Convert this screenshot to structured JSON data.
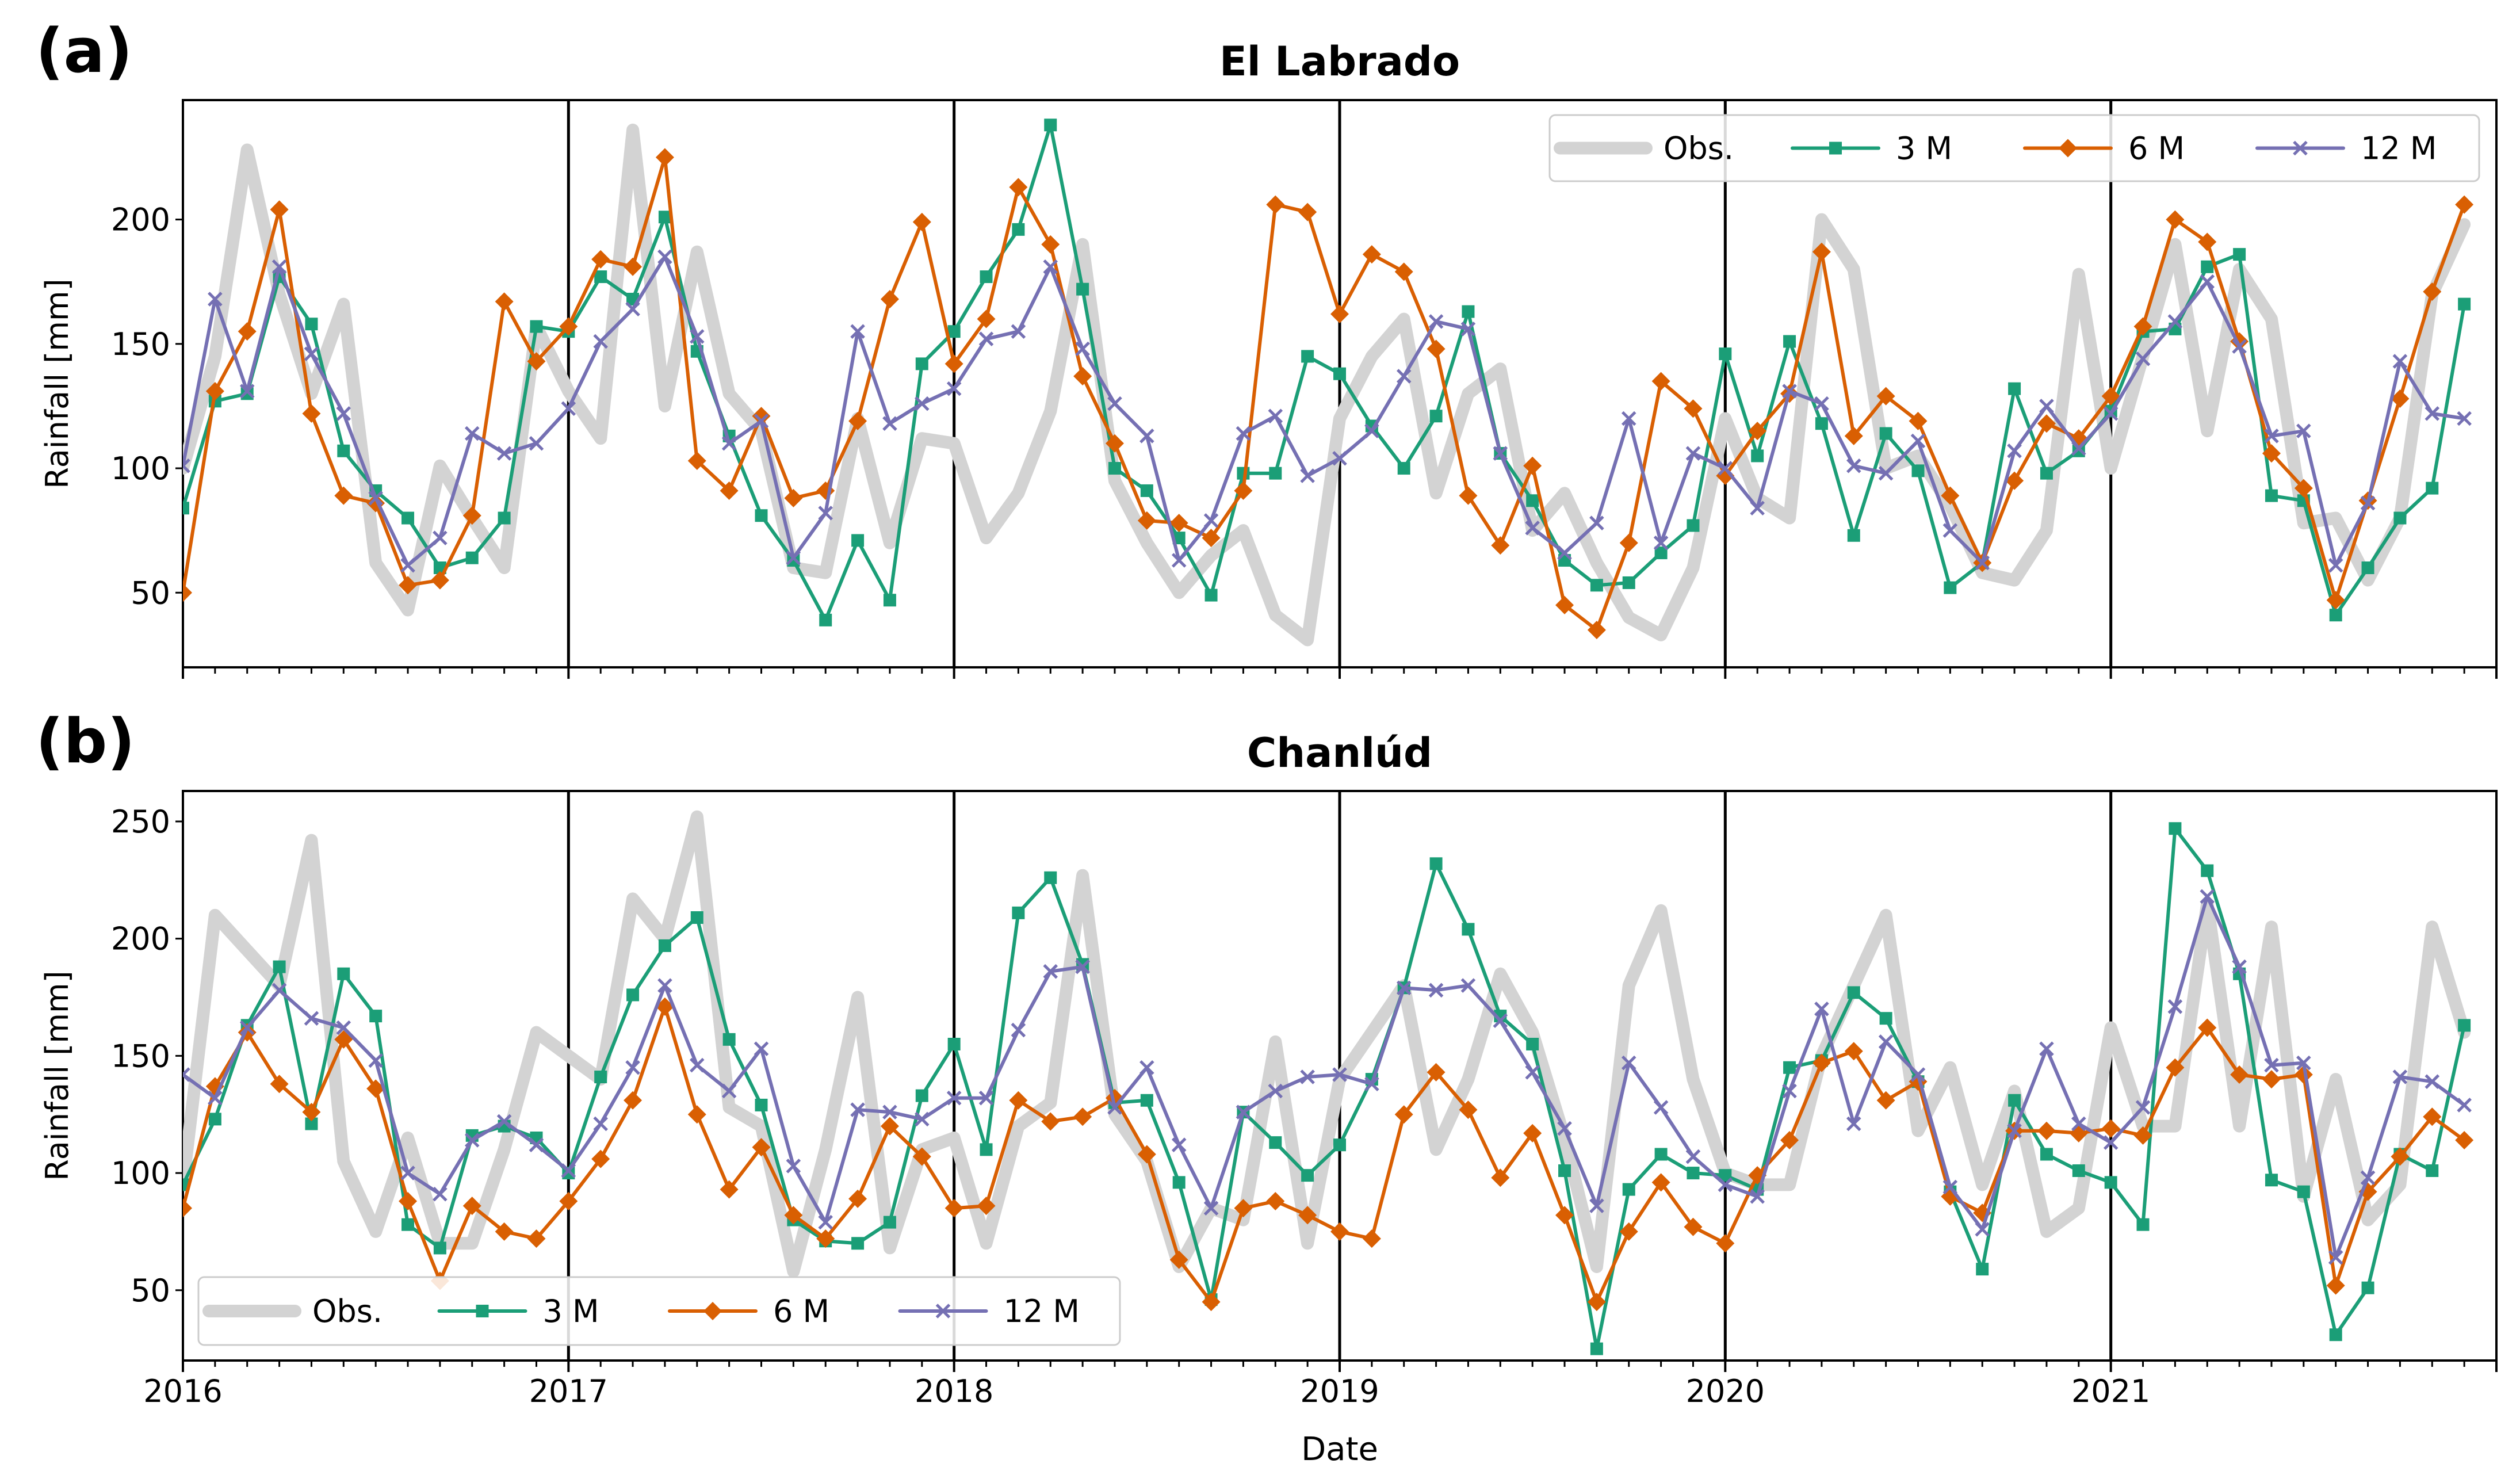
{
  "figure": {
    "xlabel": "Date",
    "ylabel": "Rainfall [mm]"
  },
  "chart_data": [
    {
      "type": "line",
      "panel_label": "(a)",
      "title": "El Labrado",
      "xlabel": "",
      "ylabel": "Rainfall [mm]",
      "x_start_year": 2016,
      "x_end_year": 2022,
      "x_ticks": [
        "2016",
        "2017",
        "2018",
        "2019",
        "2020",
        "2021"
      ],
      "year_lines": [
        2017,
        2018,
        2019,
        2020,
        2021
      ],
      "ylim": [
        20,
        248
      ],
      "yticks": [
        50,
        100,
        150,
        200
      ],
      "legend_position": "top-right",
      "series": [
        {
          "name": "Obs.",
          "color": "#d3d3d3",
          "marker": "circle",
          "values": [
            100,
            145,
            228,
            170,
            130,
            166,
            62,
            43,
            101,
            80,
            60,
            157,
            131,
            112,
            236,
            125,
            187,
            130,
            115,
            60,
            58,
            120,
            70,
            112,
            110,
            72,
            90,
            123,
            190,
            95,
            70,
            50,
            65,
            75,
            41,
            31,
            120,
            145,
            160,
            90,
            130,
            140,
            75,
            90,
            62,
            40,
            33,
            60,
            120,
            88,
            80,
            200,
            180,
            100,
            105,
            85,
            58,
            55,
            75,
            178,
            100,
            145,
            190,
            115,
            180,
            160,
            78,
            80,
            55,
            80,
            170,
            198
          ]
        },
        {
          "name": "3 M",
          "color": "#1b9e77",
          "marker": "square",
          "values": [
            84,
            127,
            130,
            177,
            158,
            107,
            91,
            80,
            60,
            64,
            80,
            157,
            155,
            177,
            168,
            201,
            147,
            113,
            81,
            63,
            39,
            71,
            47,
            142,
            155,
            177,
            196,
            238,
            172,
            100,
            91,
            72,
            49,
            98,
            98,
            145,
            138,
            117,
            100,
            121,
            163,
            106,
            87,
            63,
            53,
            54,
            66,
            77,
            146,
            105,
            151,
            118,
            73,
            114,
            99,
            52,
            62,
            132,
            98,
            107,
            123,
            155,
            156,
            181,
            186,
            89,
            87,
            41,
            60,
            80,
            92,
            166
          ]
        },
        {
          "name": "6 M",
          "color": "#d95f02",
          "marker": "diamond",
          "values": [
            50,
            131,
            155,
            204,
            122,
            89,
            86,
            53,
            55,
            81,
            167,
            143,
            157,
            184,
            181,
            225,
            103,
            91,
            121,
            88,
            91,
            119,
            168,
            199,
            142,
            160,
            213,
            190,
            137,
            110,
            79,
            78,
            72,
            91,
            206,
            203,
            162,
            186,
            179,
            148,
            89,
            69,
            101,
            45,
            35,
            70,
            135,
            124,
            97,
            115,
            130,
            187,
            113,
            129,
            119,
            89,
            62,
            95,
            118,
            112,
            129,
            157,
            200,
            191,
            151,
            106,
            92,
            47,
            87,
            128,
            171,
            206
          ]
        },
        {
          "name": "12 M",
          "color": "#7570b3",
          "marker": "x",
          "values": [
            101,
            168,
            131,
            181,
            146,
            122,
            88,
            61,
            72,
            114,
            106,
            110,
            124,
            151,
            164,
            185,
            153,
            110,
            119,
            64,
            82,
            155,
            118,
            126,
            132,
            152,
            155,
            181,
            148,
            126,
            113,
            63,
            79,
            114,
            121,
            97,
            104,
            115,
            137,
            159,
            156,
            106,
            76,
            66,
            78,
            120,
            70,
            106,
            100,
            84,
            131,
            126,
            101,
            98,
            111,
            75,
            62,
            107,
            125,
            108,
            122,
            144,
            159,
            175,
            149,
            113,
            115,
            61,
            86,
            143,
            122,
            120
          ]
        }
      ]
    },
    {
      "type": "line",
      "panel_label": "(b)",
      "title": "Chanlúd",
      "xlabel": "Date",
      "ylabel": "Rainfall [mm]",
      "x_start_year": 2016,
      "x_end_year": 2022,
      "x_ticks": [
        "2016",
        "2017",
        "2018",
        "2019",
        "2020",
        "2021"
      ],
      "year_lines": [
        2017,
        2018,
        2019,
        2020,
        2021
      ],
      "ylim": [
        20,
        263
      ],
      "yticks": [
        50,
        100,
        150,
        200,
        250
      ],
      "legend_position": "bottom-left",
      "series": [
        {
          "name": "Obs.",
          "color": "#d3d3d3",
          "marker": "circle",
          "values": [
            95,
            210,
            195,
            180,
            242,
            105,
            75,
            115,
            70,
            70,
            110,
            160,
            150,
            140,
            217,
            200,
            252,
            128,
            120,
            58,
            110,
            175,
            68,
            110,
            115,
            70,
            120,
            130,
            227,
            125,
            105,
            60,
            85,
            80,
            156,
            70,
            140,
            160,
            180,
            110,
            140,
            185,
            160,
            115,
            60,
            180,
            212,
            140,
            100,
            95,
            95,
            150,
            180,
            210,
            118,
            145,
            95,
            135,
            75,
            85,
            162,
            120,
            120,
            215,
            120,
            205,
            90,
            140,
            80,
            95,
            205,
            160
          ]
        },
        {
          "name": "3 M",
          "color": "#1b9e77",
          "marker": "square",
          "values": [
            95,
            123,
            163,
            188,
            121,
            185,
            167,
            78,
            68,
            116,
            120,
            115,
            100,
            141,
            176,
            197,
            209,
            157,
            129,
            80,
            71,
            70,
            79,
            133,
            155,
            110,
            211,
            226,
            189,
            130,
            131,
            96,
            46,
            126,
            113,
            99,
            112,
            140,
            179,
            232,
            204,
            167,
            155,
            101,
            25,
            93,
            108,
            100,
            99,
            93,
            145,
            148,
            177,
            166,
            139,
            92,
            59,
            131,
            108,
            101,
            96,
            78,
            247,
            229,
            185,
            97,
            92,
            31,
            51,
            108,
            101,
            163
          ]
        },
        {
          "name": "6 M",
          "color": "#d95f02",
          "marker": "diamond",
          "values": [
            85,
            137,
            160,
            138,
            126,
            157,
            136,
            88,
            54,
            86,
            75,
            72,
            88,
            106,
            131,
            171,
            125,
            93,
            111,
            82,
            72,
            89,
            120,
            107,
            85,
            86,
            131,
            122,
            124,
            132,
            108,
            63,
            45,
            85,
            88,
            82,
            75,
            72,
            125,
            143,
            127,
            98,
            117,
            82,
            45,
            75,
            96,
            77,
            70,
            99,
            114,
            147,
            152,
            131,
            139,
            90,
            83,
            118,
            118,
            117,
            119,
            116,
            145,
            162,
            142,
            140,
            142,
            52,
            92,
            107,
            124,
            114
          ]
        },
        {
          "name": "12 M",
          "color": "#7570b3",
          "marker": "x",
          "values": [
            142,
            132,
            162,
            178,
            166,
            162,
            148,
            100,
            91,
            114,
            122,
            112,
            101,
            121,
            145,
            180,
            146,
            135,
            153,
            103,
            79,
            127,
            126,
            123,
            132,
            132,
            161,
            186,
            188,
            128,
            145,
            112,
            85,
            126,
            135,
            141,
            142,
            138,
            179,
            178,
            180,
            165,
            143,
            119,
            86,
            147,
            128,
            107,
            95,
            90,
            135,
            170,
            121,
            156,
            142,
            94,
            76,
            118,
            153,
            121,
            113,
            128,
            171,
            218,
            188,
            146,
            147,
            64,
            98,
            141,
            139,
            129
          ]
        }
      ]
    }
  ]
}
